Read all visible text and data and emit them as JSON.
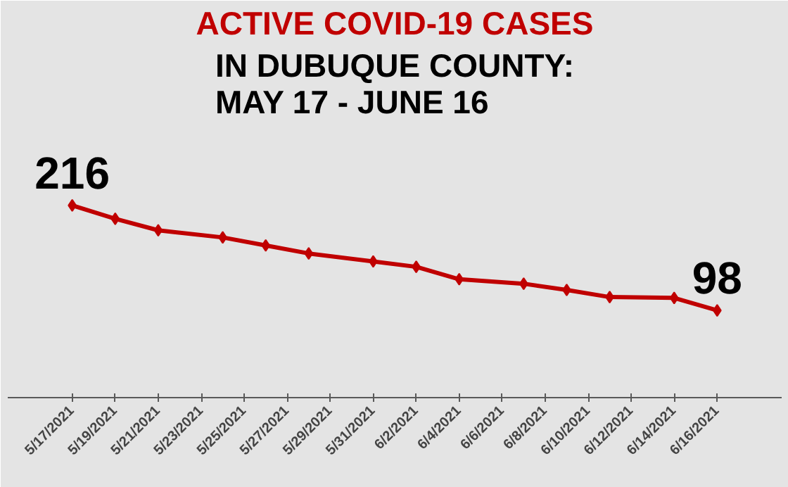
{
  "chart_data": {
    "type": "line",
    "title": "ACTIVE COVID-19 CASES",
    "subtitle": "IN DUBUQUE COUNTY:\nMAY 17 - JUNE 16",
    "x": [
      "2021-05-17",
      "2021-05-19",
      "2021-05-21",
      "2021-05-24",
      "2021-05-26",
      "2021-05-28",
      "2021-05-31",
      "2021-06-02",
      "2021-06-04",
      "2021-06-07",
      "2021-06-09",
      "2021-06-11",
      "2021-06-14",
      "2021-06-16"
    ],
    "series": [
      {
        "color": "#c00000",
        "values": [
          216,
          201,
          188,
          180,
          171,
          162,
          153,
          147,
          133,
          128,
          121,
          113,
          112,
          98
        ],
        "value_labels": [
          "216",
          null,
          null,
          null,
          null,
          null,
          null,
          null,
          null,
          null,
          null,
          null,
          null,
          "98"
        ]
      }
    ],
    "xlim": [
      "2021-05-14",
      "2021-06-19"
    ],
    "xticks": [
      {
        "value": "2021-05-17",
        "label": "5/17/2021"
      },
      {
        "value": "2021-05-19",
        "label": "5/19/2021"
      },
      {
        "value": "2021-05-21",
        "label": "5/21/2021"
      },
      {
        "value": "2021-05-23",
        "label": "5/23/2021"
      },
      {
        "value": "2021-05-25",
        "label": "5/25/2021"
      },
      {
        "value": "2021-05-27",
        "label": "5/27/2021"
      },
      {
        "value": "2021-05-29",
        "label": "5/29/2021"
      },
      {
        "value": "2021-05-31",
        "label": "5/31/2021"
      },
      {
        "value": "2021-06-02",
        "label": "6/2/2021"
      },
      {
        "value": "2021-06-04",
        "label": "6/4/2021"
      },
      {
        "value": "2021-06-06",
        "label": "6/6/2021"
      },
      {
        "value": "2021-06-08",
        "label": "6/8/2021"
      },
      {
        "value": "2021-06-10",
        "label": "6/10/2021"
      },
      {
        "value": "2021-06-12",
        "label": "6/12/2021"
      },
      {
        "value": "2021-06-14",
        "label": "6/14/2021"
      },
      {
        "value": "2021-06-16",
        "label": "6/16/2021"
      }
    ],
    "ylim": [
      0,
      310
    ],
    "tick_labels": "x",
    "marker": "diamond",
    "line_style": "solid"
  }
}
